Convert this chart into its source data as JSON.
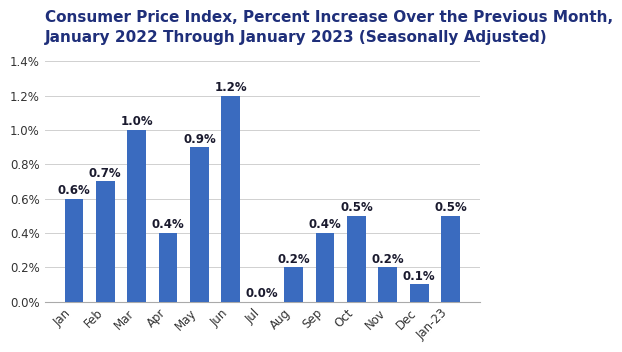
{
  "title_line1": "Consumer Price Index, Percent Increase Over the Previous Month,",
  "title_line2": "January 2022 Through January 2023 (Seasonally Adjusted)",
  "categories": [
    "Jan",
    "Feb",
    "Mar",
    "Apr",
    "May",
    "Jun",
    "Jul",
    "Aug",
    "Sep",
    "Oct",
    "Nov",
    "Dec",
    "Jan-23"
  ],
  "values": [
    0.6,
    0.7,
    1.0,
    0.4,
    0.9,
    1.2,
    0.0,
    0.2,
    0.4,
    0.5,
    0.2,
    0.1,
    0.5
  ],
  "bar_color": "#3a6bbf",
  "title_color": "#1f2f7a",
  "label_color": "#1a1a2e",
  "ylim": [
    0,
    1.45
  ],
  "yticks": [
    0.0,
    0.2,
    0.4,
    0.6,
    0.8,
    1.0,
    1.2,
    1.4
  ],
  "background_color": "#ffffff",
  "grid_color": "#d0d0d0",
  "title_fontsize": 11.0,
  "label_fontsize": 8.5,
  "tick_fontsize": 8.5
}
